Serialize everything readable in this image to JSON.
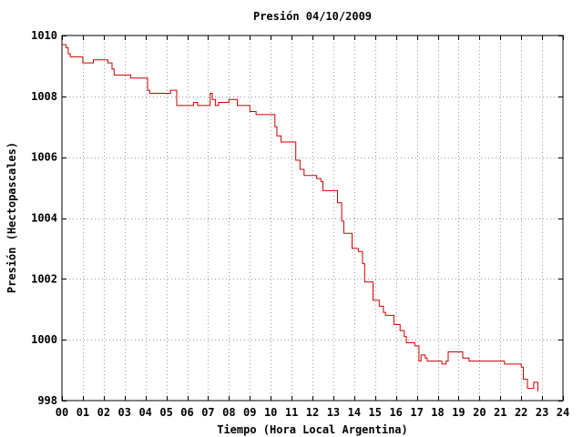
{
  "chart_data": {
    "type": "line",
    "title": "Presión 04/10/2009",
    "xlabel": "Tiempo (Hora Local Argentina)",
    "ylabel": "Presión (Hectopascales)",
    "xlim": [
      0,
      24
    ],
    "ylim": [
      998,
      1010
    ],
    "x_ticks": [
      "00",
      "01",
      "02",
      "03",
      "04",
      "05",
      "06",
      "07",
      "08",
      "09",
      "10",
      "11",
      "12",
      "13",
      "14",
      "15",
      "16",
      "17",
      "18",
      "19",
      "20",
      "21",
      "22",
      "23",
      "24"
    ],
    "y_ticks": [
      "998",
      "1000",
      "1002",
      "1004",
      "1006",
      "1008",
      "1010"
    ],
    "grid": true,
    "series": [
      {
        "line_color": "#cc0000",
        "x": [
          0,
          0.2,
          0.3,
          0.4,
          0.9,
          1.0,
          1.4,
          1.5,
          2.0,
          2.2,
          2.4,
          2.5,
          3.0,
          3.3,
          4.0,
          4.1,
          4.2,
          5.0,
          5.1,
          5.2,
          5.3,
          5.5,
          6.0,
          6.1,
          6.3,
          6.5,
          7.0,
          7.1,
          7.2,
          7.35,
          7.5,
          7.7,
          8.0,
          8.1,
          8.4,
          8.5,
          9.0,
          9.1,
          9.3,
          9.5,
          10.0,
          10.2,
          10.3,
          10.5,
          11.0,
          11.2,
          11.4,
          11.6,
          12.0,
          12.2,
          12.4,
          12.5,
          13.0,
          13.2,
          13.4,
          13.5,
          13.9,
          14.0,
          14.2,
          14.4,
          14.5,
          14.9,
          15.0,
          15.2,
          15.4,
          15.5,
          15.9,
          16.0,
          16.2,
          16.4,
          16.5,
          16.9,
          17.0,
          17.1,
          17.2,
          17.4,
          17.5,
          18.0,
          18.1,
          18.2,
          18.4,
          18.5,
          19.0,
          19.2,
          19.4,
          19.5,
          20.0,
          20.4,
          20.6,
          21.0,
          21.2,
          21.4,
          21.5,
          22.0,
          22.1,
          22.3,
          22.4,
          22.6,
          22.8
        ],
        "values": [
          1009.7,
          1009.6,
          1009.4,
          1009.3,
          1009.3,
          1009.1,
          1009.1,
          1009.2,
          1009.2,
          1009.1,
          1008.9,
          1008.7,
          1008.7,
          1008.6,
          1008.6,
          1008.2,
          1008.1,
          1008.1,
          1008.1,
          1008.2,
          1008.2,
          1007.7,
          1007.7,
          1007.7,
          1007.8,
          1007.7,
          1007.7,
          1008.1,
          1007.9,
          1007.7,
          1007.8,
          1007.8,
          1007.9,
          1007.9,
          1007.7,
          1007.7,
          1007.5,
          1007.5,
          1007.4,
          1007.4,
          1007.4,
          1007.0,
          1006.7,
          1006.5,
          1006.5,
          1005.9,
          1005.6,
          1005.4,
          1005.4,
          1005.3,
          1005.2,
          1004.9,
          1004.9,
          1004.5,
          1003.9,
          1003.5,
          1003.0,
          1003.0,
          1002.9,
          1002.5,
          1001.9,
          1001.3,
          1001.3,
          1001.1,
          1000.9,
          1000.8,
          1000.5,
          1000.5,
          1000.3,
          1000.1,
          999.9,
          999.8,
          999.8,
          999.3,
          999.5,
          999.4,
          999.3,
          999.3,
          999.3,
          999.2,
          999.3,
          999.6,
          999.6,
          999.4,
          999.4,
          999.3,
          999.3,
          999.3,
          999.3,
          999.3,
          999.2,
          999.2,
          999.2,
          999.1,
          998.7,
          998.4,
          998.4,
          998.6,
          998.3
        ]
      }
    ]
  }
}
